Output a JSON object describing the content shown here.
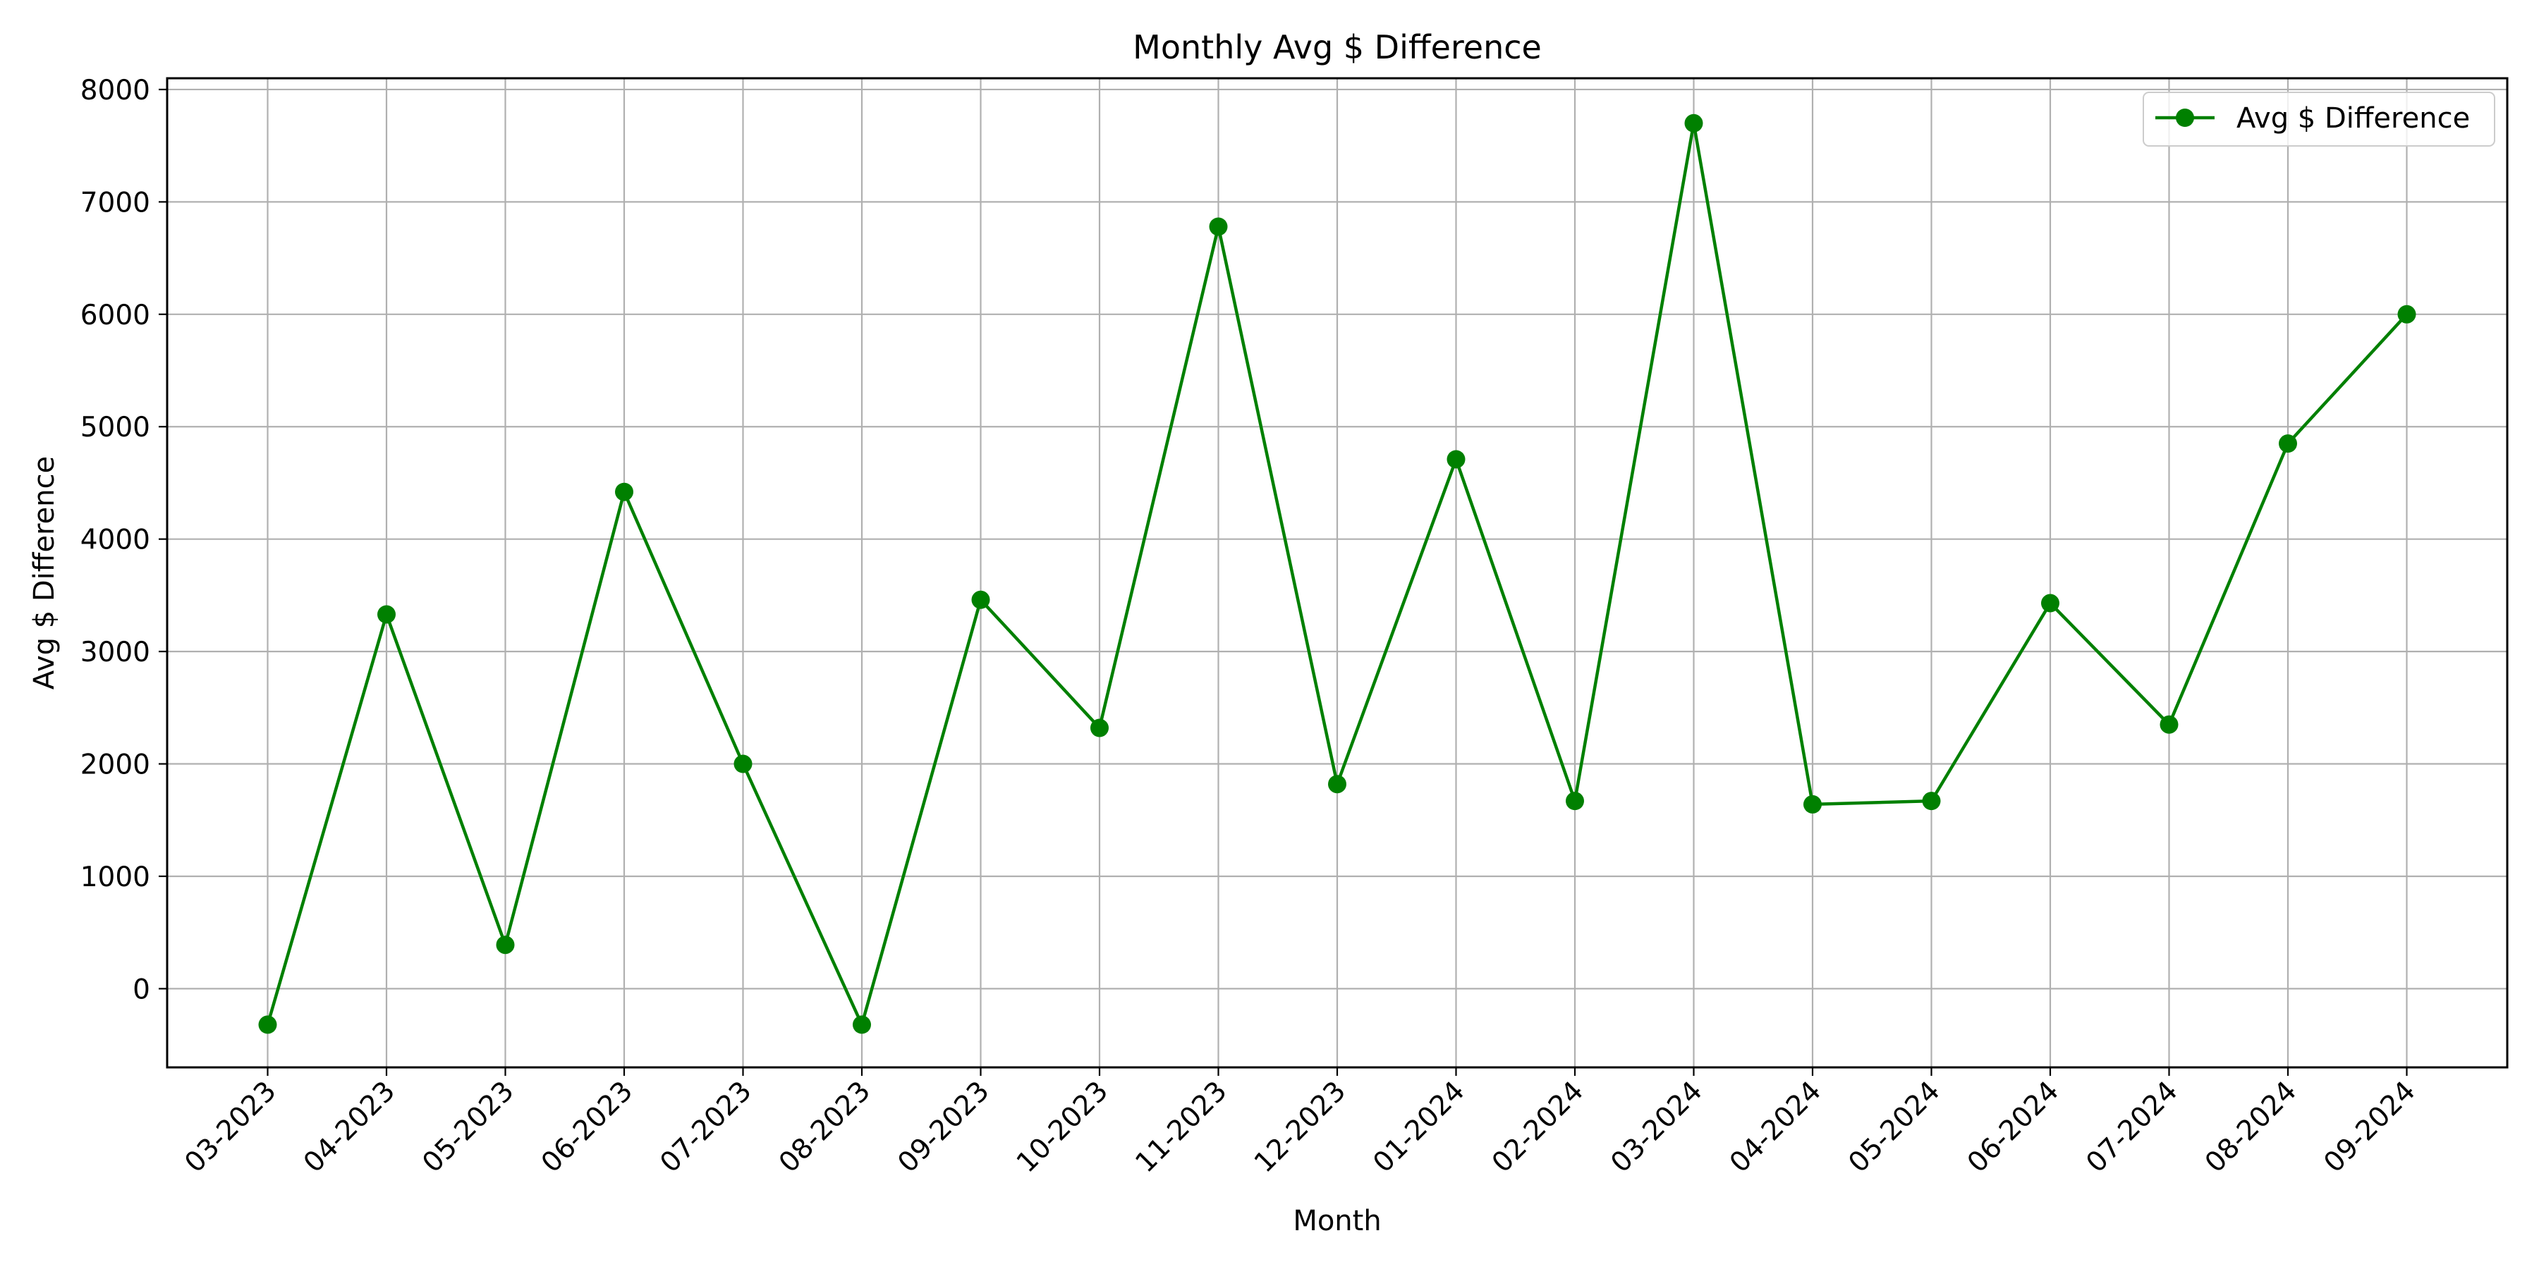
{
  "chart_data": {
    "type": "line",
    "title": "Monthly Avg $ Difference",
    "xlabel": "Month",
    "ylabel": "Avg $ Difference",
    "categories": [
      "03-2023",
      "04-2023",
      "05-2023",
      "06-2023",
      "07-2023",
      "08-2023",
      "09-2023",
      "10-2023",
      "11-2023",
      "12-2023",
      "01-2024",
      "02-2024",
      "03-2024",
      "04-2024",
      "05-2024",
      "06-2024",
      "07-2024",
      "08-2024",
      "09-2024"
    ],
    "series": [
      {
        "name": "Avg $ Difference",
        "color": "#008000",
        "marker": "circle",
        "values": [
          -320,
          3330,
          390,
          4420,
          2000,
          -320,
          3460,
          2320,
          6780,
          1820,
          4710,
          1670,
          7700,
          1640,
          1670,
          3430,
          2350,
          4850,
          6000
        ]
      }
    ],
    "ylim": [
      -700,
      8100
    ],
    "yticks": [
      0,
      1000,
      2000,
      3000,
      4000,
      5000,
      6000,
      7000,
      8000
    ],
    "grid": true,
    "legend": "upper right",
    "colors": {
      "grid": "#b0b0b0",
      "axes": "#000000"
    }
  }
}
